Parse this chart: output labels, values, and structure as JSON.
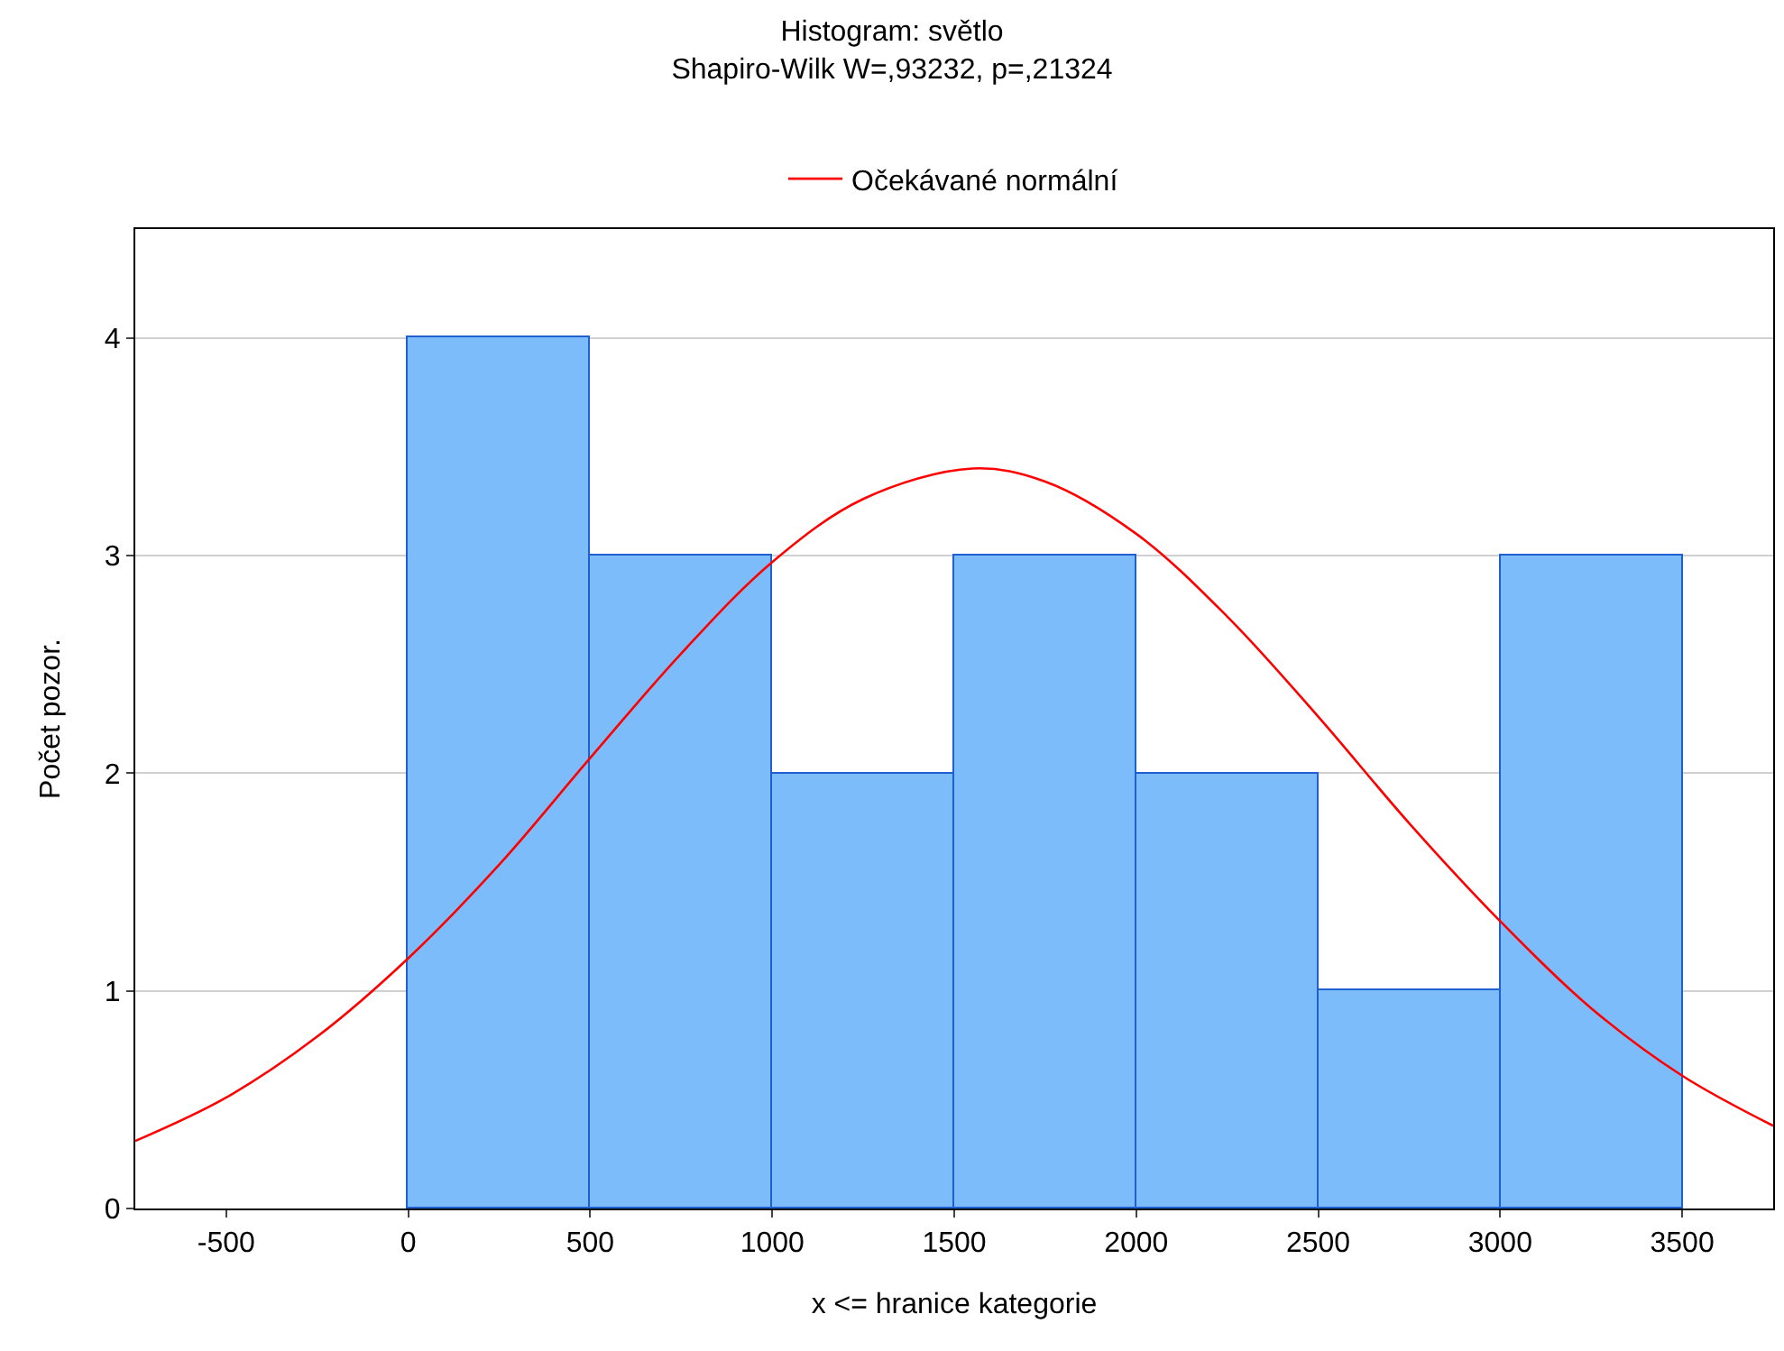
{
  "chart_data": {
    "type": "histogram",
    "title": "Histogram: světlo",
    "subtitle": "Shapiro-Wilk W=,93232, p=,21324",
    "xlabel": "x <= hranice kategorie",
    "ylabel": "Počet pozor.",
    "bins": [
      0,
      500,
      1000,
      1500,
      2000,
      2500,
      3000,
      3500
    ],
    "values": [
      4,
      3,
      2,
      3,
      2,
      1,
      3
    ],
    "color": "#7dbcfa",
    "series": [
      {
        "type": "line",
        "name": "Očekávané normální",
        "color": "#ff0000",
        "x": [
          -750,
          -500,
          -250,
          0,
          250,
          500,
          750,
          1000,
          1250,
          1550,
          1750,
          2000,
          2250,
          2500,
          2750,
          3000,
          3250,
          3500,
          3750
        ],
        "values": [
          0.31,
          0.51,
          0.79,
          1.15,
          1.58,
          2.07,
          2.55,
          2.97,
          3.26,
          3.4,
          3.34,
          3.1,
          2.72,
          2.26,
          1.77,
          1.32,
          0.92,
          0.61,
          0.38
        ]
      }
    ],
    "xlim": [
      -750,
      3750
    ],
    "xticks": [
      -500,
      0,
      500,
      1000,
      1500,
      2000,
      2500,
      3000,
      3500
    ],
    "ylim": [
      0,
      4.5
    ],
    "yticks": [
      0,
      1,
      2,
      3,
      4
    ],
    "grid": "y",
    "legend": "top",
    "line_style": "solid",
    "marker": "none"
  }
}
